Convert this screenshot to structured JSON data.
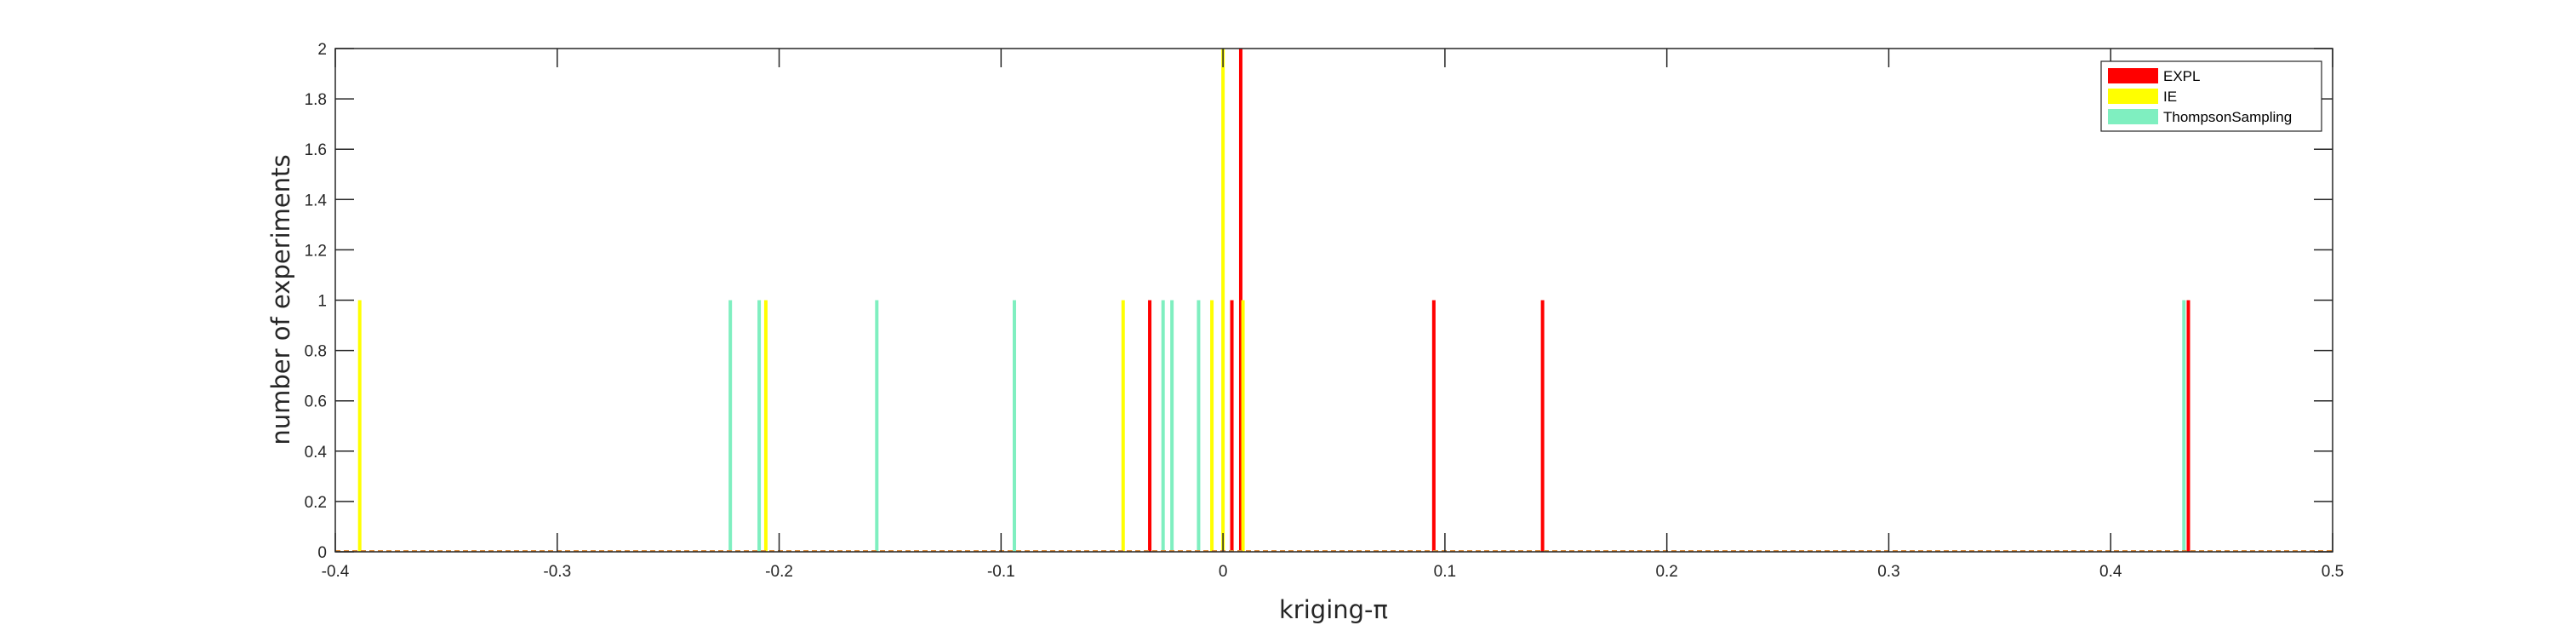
{
  "chart_data": {
    "type": "bar",
    "subtype": "histogram",
    "xlabel": "kriging-π",
    "ylabel": "number of experiments",
    "xlim": [
      -0.4,
      0.5
    ],
    "ylim": [
      0,
      2
    ],
    "xticks": [
      -0.4,
      -0.3,
      -0.2,
      -0.1,
      0,
      0.1,
      0.2,
      0.3,
      0.4,
      0.5
    ],
    "xtick_labels": [
      "-0.4",
      "-0.3",
      "-0.2",
      "-0.1",
      "0",
      "0.1",
      "0.2",
      "0.3",
      "0.4",
      "0.5"
    ],
    "yticks": [
      0,
      0.2,
      0.4,
      0.6,
      0.8,
      1,
      1.2,
      1.4,
      1.6,
      1.8,
      2
    ],
    "ytick_labels": [
      "0",
      "0.2",
      "0.4",
      "0.6",
      "0.8",
      "1",
      "1.2",
      "1.4",
      "1.6",
      "1.8",
      "2"
    ],
    "grid": false,
    "legend_position": "top-right",
    "series": [
      {
        "name": "EXPL",
        "color": "#ff0000",
        "bars": [
          {
            "x": -0.033,
            "count": 1
          },
          {
            "x": 0.004,
            "count": 1
          },
          {
            "x": 0.008,
            "count": 2
          },
          {
            "x": 0.095,
            "count": 1
          },
          {
            "x": 0.144,
            "count": 1
          },
          {
            "x": 0.435,
            "count": 1
          }
        ]
      },
      {
        "name": "IE",
        "color": "#ffff00",
        "bars": [
          {
            "x": -0.389,
            "count": 1
          },
          {
            "x": -0.206,
            "count": 1
          },
          {
            "x": -0.045,
            "count": 1
          },
          {
            "x": -0.005,
            "count": 1
          },
          {
            "x": 0.0,
            "count": 2
          },
          {
            "x": 0.009,
            "count": 1
          }
        ]
      },
      {
        "name": "ThompsonSampling",
        "color": "#7fefc0",
        "bars": [
          {
            "x": -0.222,
            "count": 1
          },
          {
            "x": -0.209,
            "count": 1
          },
          {
            "x": -0.156,
            "count": 1
          },
          {
            "x": -0.094,
            "count": 1
          },
          {
            "x": -0.027,
            "count": 1
          },
          {
            "x": -0.023,
            "count": 1
          },
          {
            "x": -0.011,
            "count": 1
          },
          {
            "x": 0.433,
            "count": 1
          }
        ]
      }
    ]
  }
}
